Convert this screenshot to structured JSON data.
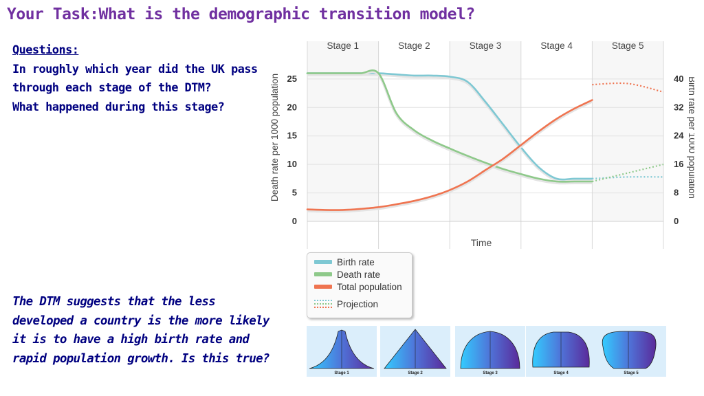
{
  "title": "Your Task:What is the demographic transition model?",
  "questions": {
    "heading": "Questions:",
    "line1": "In roughly which year did the UK pass through each stage of the DTM?",
    "line2": "What happened during this stage?"
  },
  "note": "The DTM suggests that the less developed a country is the more likely it is to have a high birth rate and rapid population growth. Is this true?",
  "colors": {
    "birth_rate": "#7ec8d3",
    "death_rate": "#8ec98a",
    "total_population": "#ef7450",
    "title": "#7030a0",
    "text": "#000080"
  },
  "chart_data": {
    "type": "line",
    "stages": [
      "Stage 1",
      "Stage 2",
      "Stage 3",
      "Stage 4",
      "Stage 5"
    ],
    "xlabel": "Time",
    "ylabel_left": "Death rate per 1000 population",
    "ylabel_right": "Birth rate per 1000 population",
    "yticks_left": [
      "0",
      "5",
      "10",
      "15",
      "20",
      "25"
    ],
    "yticks_right": [
      "0",
      "8",
      "16",
      "24",
      "32",
      "40"
    ],
    "ylim_left": [
      0,
      28
    ],
    "x": [
      0,
      0.25,
      0.5,
      0.75,
      1,
      1.25,
      1.5,
      1.75,
      2,
      2.25,
      2.5,
      2.75,
      3,
      3.25,
      3.5,
      3.75,
      4,
      4.25,
      4.5,
      4.75,
      5
    ],
    "series": [
      {
        "name": "Birth rate",
        "color": "#7ec8d3",
        "values": [
          26,
          26,
          26,
          26,
          26,
          25.8,
          25.6,
          25.6,
          25.4,
          24.5,
          21,
          17,
          13,
          9.5,
          7.5,
          7.5,
          7.5,
          7.5,
          7.5,
          7.5,
          7.5
        ],
        "projection": [
          [
            4,
            7.5
          ],
          [
            4.5,
            7.8
          ],
          [
            5,
            7.8
          ]
        ]
      },
      {
        "name": "Death rate",
        "color": "#8ec98a",
        "values": [
          26,
          26,
          26,
          26,
          26,
          19,
          16,
          14.2,
          12.8,
          11.5,
          10.3,
          9.2,
          8.3,
          7.5,
          7,
          7,
          7,
          7,
          7,
          7,
          7
        ],
        "projection": [
          [
            4,
            7
          ],
          [
            4.5,
            8.5
          ],
          [
            5,
            10
          ]
        ]
      },
      {
        "name": "Total population",
        "color": "#ef7450",
        "values": [
          2.1,
          2,
          2,
          2.2,
          2.5,
          3,
          3.6,
          4.4,
          5.5,
          7,
          9,
          11,
          13.4,
          15.8,
          18,
          19.8,
          21.3,
          22.6,
          23.5,
          24,
          24
        ],
        "projection": [
          [
            4,
            24
          ],
          [
            4.5,
            24.2
          ],
          [
            5,
            22.7
          ]
        ]
      }
    ],
    "legend": [
      "Birth rate",
      "Death rate",
      "Total population",
      "Projection"
    ],
    "legend_position": "below"
  },
  "pyramids": [
    "Stage 1",
    "Stage 2",
    "Stage 3",
    "Stage 4",
    "Stage 5"
  ]
}
